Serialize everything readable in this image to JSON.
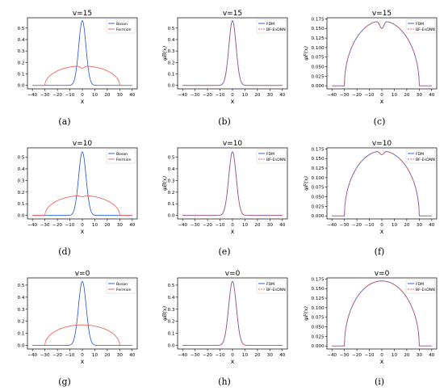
{
  "figure": {
    "legend_font": "tiny",
    "colors": {
      "boson": "#1f4fd6",
      "fermion": "#e8584f",
      "fdm": "#1f4fd6",
      "bf_endnn": "#e8584f"
    }
  },
  "chart_data": [
    {
      "id": "a",
      "caption": "(a)",
      "type": "line",
      "title": "v=15",
      "xlabel": "x",
      "ylabel": "",
      "xlim": [
        -44,
        44
      ],
      "ylim": [
        -0.03,
        0.59
      ],
      "xticks": [
        "-40",
        "-30",
        "-20",
        "-10",
        "0",
        "10",
        "20",
        "30",
        "40"
      ],
      "yticks": [
        "0.0",
        "0.1",
        "0.2",
        "0.3",
        "0.4",
        "0.5"
      ],
      "legend_position": "top-right",
      "series": [
        {
          "name": "Boson",
          "color": "#1f4fd6",
          "shape": "boson",
          "peak": 0.565,
          "width": 2.9,
          "dash": false
        },
        {
          "name": "Fermion",
          "color": "#e8584f",
          "shape": "fermion_dip",
          "max": 0.17,
          "radius": 30,
          "dip_depth": 0.02,
          "dash": false
        }
      ]
    },
    {
      "id": "b",
      "caption": "(b)",
      "type": "line",
      "title": "v=15",
      "xlabel": "x",
      "ylabel": "φB(x)",
      "xlim": [
        -44,
        44
      ],
      "ylim": [
        -0.03,
        0.59
      ],
      "xticks": [
        "-40",
        "-30",
        "-20",
        "-10",
        "0",
        "10",
        "20",
        "30",
        "40"
      ],
      "yticks": [
        "0.0",
        "0.1",
        "0.2",
        "0.3",
        "0.4",
        "0.5"
      ],
      "legend_position": "top-right",
      "series": [
        {
          "name": "FDM",
          "color": "#1f4fd6",
          "shape": "boson",
          "peak": 0.565,
          "width": 2.9,
          "dash": false
        },
        {
          "name": "BF-EnDNN",
          "color": "#e8584f",
          "shape": "boson",
          "peak": 0.565,
          "width": 2.9,
          "dash": true
        }
      ]
    },
    {
      "id": "c",
      "caption": "(c)",
      "type": "line",
      "title": "v=15",
      "xlabel": "x",
      "ylabel": "φF(x)",
      "xlim": [
        -44,
        44
      ],
      "ylim": [
        -0.008,
        0.178
      ],
      "xticks": [
        "-40",
        "-30",
        "-20",
        "-10",
        "0",
        "10",
        "20",
        "30",
        "40"
      ],
      "yticks": [
        "0.000",
        "0.025",
        "0.050",
        "0.075",
        "0.100",
        "0.125",
        "0.150",
        "0.175"
      ],
      "legend_position": "top-right",
      "series": [
        {
          "name": "FDM",
          "color": "#1f4fd6",
          "shape": "fermion_dip",
          "max": 0.17,
          "radius": 30,
          "dip_depth": 0.02,
          "dash": false
        },
        {
          "name": "BF-EnDNN",
          "color": "#e8584f",
          "shape": "fermion_dip",
          "max": 0.17,
          "radius": 30,
          "dip_depth": 0.02,
          "dash": true
        }
      ]
    },
    {
      "id": "d",
      "caption": "(d)",
      "type": "line",
      "title": "v=10",
      "xlabel": "x",
      "ylabel": "",
      "xlim": [
        -44,
        44
      ],
      "ylim": [
        -0.03,
        0.58
      ],
      "xticks": [
        "-40",
        "-30",
        "-20",
        "-10",
        "0",
        "10",
        "20",
        "30",
        "40"
      ],
      "yticks": [
        "0.0",
        "0.1",
        "0.2",
        "0.3",
        "0.4",
        "0.5"
      ],
      "legend_position": "top-right",
      "series": [
        {
          "name": "Boson",
          "color": "#1f4fd6",
          "shape": "boson",
          "peak": 0.545,
          "width": 3.0,
          "dash": false
        },
        {
          "name": "Fermion",
          "color": "#e8584f",
          "shape": "fermion_dip",
          "max": 0.17,
          "radius": 30,
          "dip_depth": 0.01,
          "dash": false
        }
      ]
    },
    {
      "id": "e",
      "caption": "(e)",
      "type": "line",
      "title": "v=10",
      "xlabel": "x",
      "ylabel": "φB(x)",
      "xlim": [
        -44,
        44
      ],
      "ylim": [
        -0.03,
        0.58
      ],
      "xticks": [
        "-40",
        "-30",
        "-20",
        "-10",
        "0",
        "10",
        "20",
        "30",
        "40"
      ],
      "yticks": [
        "0.0",
        "0.1",
        "0.2",
        "0.3",
        "0.4",
        "0.5"
      ],
      "legend_position": "top-right",
      "series": [
        {
          "name": "FDM",
          "color": "#1f4fd6",
          "shape": "boson",
          "peak": 0.545,
          "width": 3.0,
          "dash": false
        },
        {
          "name": "BF-EnDNN",
          "color": "#e8584f",
          "shape": "boson",
          "peak": 0.545,
          "width": 3.0,
          "dash": true
        }
      ]
    },
    {
      "id": "f",
      "caption": "(f)",
      "type": "line",
      "title": "v=10",
      "xlabel": "x",
      "ylabel": "φF(x)",
      "xlim": [
        -44,
        44
      ],
      "ylim": [
        -0.008,
        0.178
      ],
      "xticks": [
        "-40",
        "-30",
        "-20",
        "-10",
        "0",
        "10",
        "20",
        "30",
        "40"
      ],
      "yticks": [
        "0.000",
        "0.025",
        "0.050",
        "0.075",
        "0.100",
        "0.125",
        "0.150",
        "0.175"
      ],
      "legend_position": "top-right",
      "series": [
        {
          "name": "FDM",
          "color": "#1f4fd6",
          "shape": "fermion_dip",
          "max": 0.17,
          "radius": 30,
          "dip_depth": 0.01,
          "dash": false
        },
        {
          "name": "BF-EnDNN",
          "color": "#e8584f",
          "shape": "fermion_dip",
          "max": 0.17,
          "radius": 30,
          "dip_depth": 0.01,
          "dash": true
        }
      ]
    },
    {
      "id": "g",
      "caption": "(g)",
      "type": "line",
      "title": "v=0",
      "xlabel": "x",
      "ylabel": "",
      "xlim": [
        -44,
        44
      ],
      "ylim": [
        -0.03,
        0.56
      ],
      "xticks": [
        "-40",
        "-30",
        "-20",
        "-10",
        "0",
        "10",
        "20",
        "30",
        "40"
      ],
      "yticks": [
        "0.0",
        "0.1",
        "0.2",
        "0.3",
        "0.4",
        "0.5"
      ],
      "legend_position": "top-right",
      "series": [
        {
          "name": "Boson",
          "color": "#1f4fd6",
          "shape": "boson",
          "peak": 0.53,
          "width": 3.1,
          "dash": false
        },
        {
          "name": "Fermion",
          "color": "#e8584f",
          "shape": "fermion_dip",
          "max": 0.17,
          "radius": 30,
          "dip_depth": 0.0,
          "dash": false
        }
      ]
    },
    {
      "id": "h",
      "caption": "(h)",
      "type": "line",
      "title": "v=0",
      "xlabel": "x",
      "ylabel": "φB(x)",
      "xlim": [
        -44,
        44
      ],
      "ylim": [
        -0.03,
        0.56
      ],
      "xticks": [
        "-40",
        "-30",
        "-20",
        "-10",
        "0",
        "10",
        "20",
        "30",
        "40"
      ],
      "yticks": [
        "0.0",
        "0.1",
        "0.2",
        "0.3",
        "0.4",
        "0.5"
      ],
      "legend_position": "top-right",
      "series": [
        {
          "name": "FDM",
          "color": "#1f4fd6",
          "shape": "boson",
          "peak": 0.53,
          "width": 3.1,
          "dash": false
        },
        {
          "name": "BF-EnDNN",
          "color": "#e8584f",
          "shape": "boson",
          "peak": 0.53,
          "width": 3.1,
          "dash": true
        }
      ]
    },
    {
      "id": "i",
      "caption": "(i)",
      "type": "line",
      "title": "v=0",
      "xlabel": "x",
      "ylabel": "φF(x)",
      "xlim": [
        -44,
        44
      ],
      "ylim": [
        -0.008,
        0.178
      ],
      "xticks": [
        "-40",
        "-30",
        "-20",
        "-10",
        "0",
        "10",
        "20",
        "30",
        "40"
      ],
      "yticks": [
        "0.000",
        "0.025",
        "0.050",
        "0.075",
        "0.100",
        "0.125",
        "0.150",
        "0.175"
      ],
      "legend_position": "top-right",
      "series": [
        {
          "name": "FDM",
          "color": "#1f4fd6",
          "shape": "fermion_dip",
          "max": 0.17,
          "radius": 30,
          "dip_depth": 0.0,
          "dash": false
        },
        {
          "name": "BF-EnDNN",
          "color": "#e8584f",
          "shape": "fermion_dip",
          "max": 0.17,
          "radius": 30,
          "dip_depth": 0.0,
          "dash": true
        }
      ]
    }
  ]
}
